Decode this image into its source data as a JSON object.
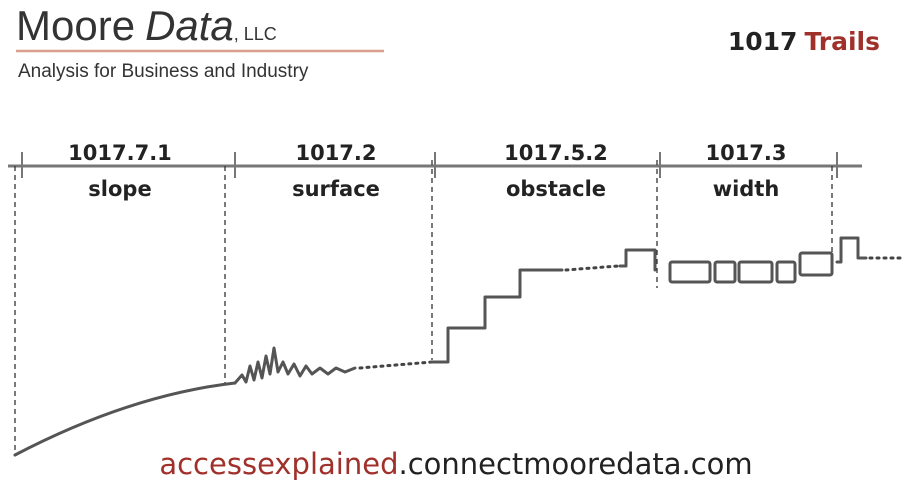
{
  "header": {
    "brand": "Moore",
    "brand_italic": "Data",
    "suffix": ", LLC",
    "tagline": "Analysis for Business and Industry",
    "section_number": "1017",
    "section_title": "Trails"
  },
  "sections": [
    {
      "code": "1017.7.1",
      "label": "slope"
    },
    {
      "code": "1017.2",
      "label": "surface"
    },
    {
      "code": "1017.5.2",
      "label": "obstacle"
    },
    {
      "code": "1017.3",
      "label": "width"
    }
  ],
  "footer": {
    "highlight": "accessexplained",
    "domain": ".connectmooredata.com"
  }
}
